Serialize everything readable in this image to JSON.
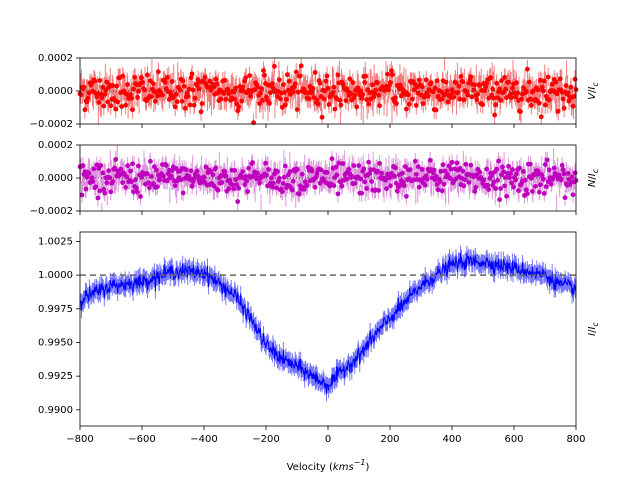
{
  "chart_data": [
    {
      "type": "scatter",
      "panel": "top",
      "ylabel": "V/I_c",
      "color": "#ff0000",
      "error_color": "#f07070",
      "xlim": [
        -800,
        800
      ],
      "ylim": [
        -0.0002,
        0.0002
      ],
      "yticks": [
        -0.0002,
        0.0,
        0.0002
      ],
      "ytick_labels": [
        "−0.0002",
        "0.0000",
        "0.0002"
      ],
      "reference_line": {
        "y": 0.0,
        "style": "dotted",
        "color": "#333333"
      },
      "series": [
        {
          "noise_sd": 5.5e-05,
          "error_half_height": 5.5e-05,
          "x_start": -800,
          "x_end": 800,
          "x_step": 1.6
        }
      ]
    },
    {
      "type": "scatter",
      "panel": "middle",
      "ylabel": "N/I_c",
      "color": "#bf00bf",
      "error_color": "#d98ad9",
      "xlim": [
        -800,
        800
      ],
      "ylim": [
        -0.0002,
        0.0002
      ],
      "yticks": [
        -0.0002,
        0.0,
        0.0002
      ],
      "ytick_labels": [
        "−0.0002",
        "0.0000",
        "0.0002"
      ],
      "reference_line": {
        "y": 0.0,
        "style": "dotted",
        "color": "#333333"
      },
      "series": [
        {
          "noise_sd": 5e-05,
          "error_half_height": 5e-05,
          "x_start": -800,
          "x_end": 800,
          "x_step": 1.6
        }
      ]
    },
    {
      "type": "line",
      "panel": "bottom",
      "ylabel": "I/I_c",
      "xlabel": "Velocity (kms^-1)",
      "color": "#0000ff",
      "error_color": "#6a6aff",
      "xlim": [
        -800,
        800
      ],
      "ylim": [
        0.9888,
        1.0032
      ],
      "yticks": [
        0.99,
        0.9925,
        0.995,
        0.9975,
        1.0,
        1.0025
      ],
      "ytick_labels": [
        "0.9900",
        "0.9925",
        "0.9950",
        "0.9975",
        "1.0000",
        "1.0025"
      ],
      "xticks": [
        -800,
        -600,
        -400,
        -200,
        0,
        200,
        400,
        600,
        800
      ],
      "xtick_labels": [
        "−800",
        "−600",
        "−400",
        "−200",
        "0",
        "200",
        "400",
        "600",
        "800"
      ],
      "reference_line": {
        "y": 1.0,
        "style": "dashed",
        "color": "#666666"
      },
      "series": [
        {
          "profile_x": [
            -800,
            -700,
            -600,
            -500,
            -400,
            -300,
            -250,
            -200,
            -150,
            -100,
            -50,
            0,
            50,
            100,
            150,
            200,
            250,
            300,
            350,
            400,
            450,
            500,
            600,
            700,
            750,
            800
          ],
          "profile_y": [
            0.9982,
            0.9992,
            0.9995,
            1.0003,
            1.0002,
            0.9985,
            0.9968,
            0.9948,
            0.9938,
            0.9932,
            0.9925,
            0.9918,
            0.993,
            0.994,
            0.9955,
            0.9968,
            0.998,
            0.9992,
            1.0,
            1.0008,
            1.001,
            1.001,
            1.0005,
            1.0,
            0.9993,
            0.999
          ],
          "error_half_height": 0.00055,
          "x_start": -800,
          "x_end": 800,
          "x_step": 1.6
        }
      ]
    }
  ]
}
